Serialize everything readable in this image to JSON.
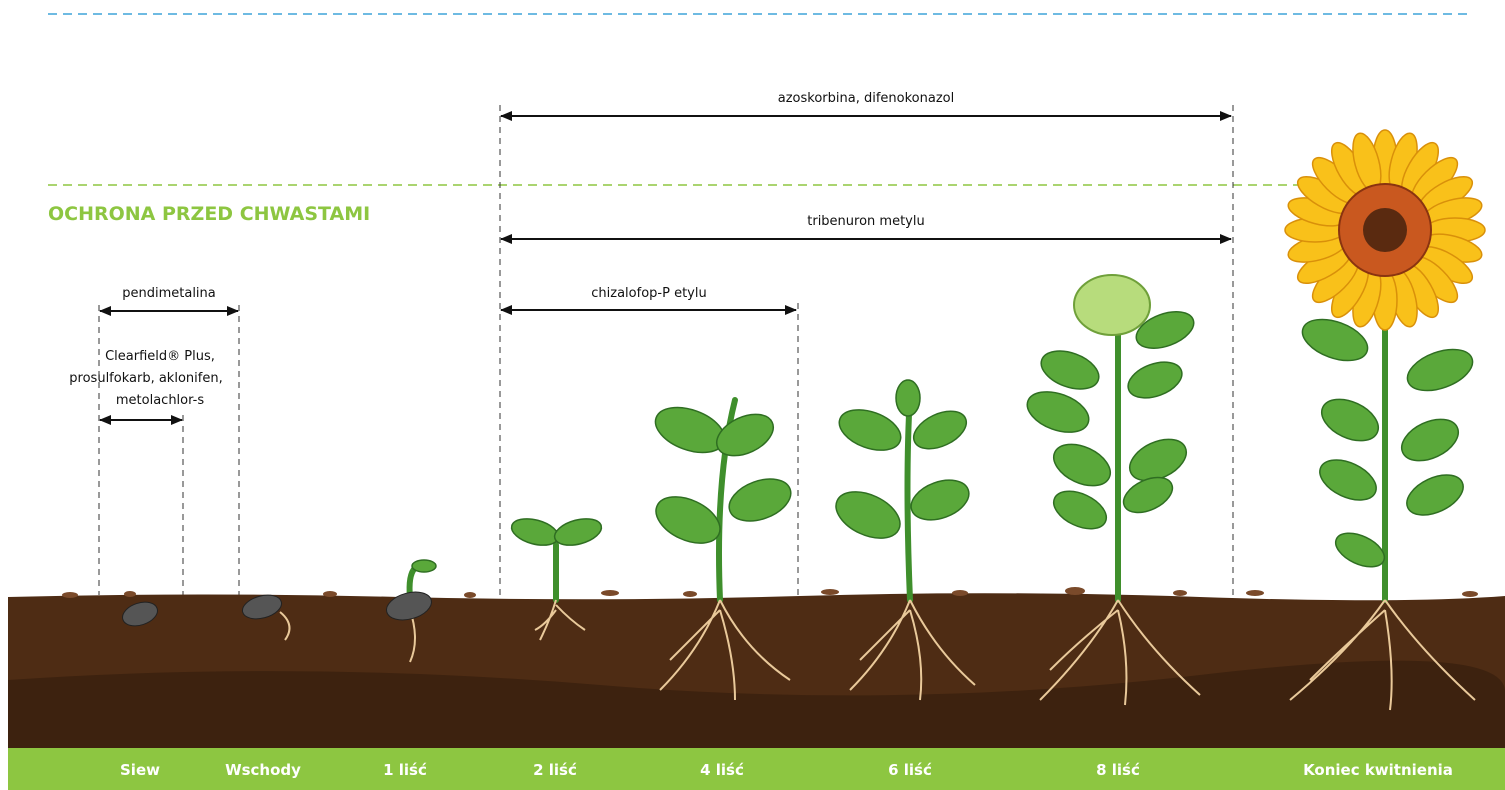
{
  "section_title": "OCHRONA PRZED CHWASTAMI",
  "ranges": [
    {
      "label": "azoskorbina, difenokonazol"
    },
    {
      "label": "tribenuron metylu"
    },
    {
      "label": "chizalofop-P etylu"
    },
    {
      "label": "pendimetalina"
    },
    {
      "lines": [
        "Clearfield® Plus,",
        "prosulfokarb, aklonifen,",
        "metolachlor-s"
      ]
    }
  ],
  "stages": [
    "Siew",
    "Wschody",
    "1 liść",
    "2 liść",
    "4 liść",
    "6 liść",
    "8 liść",
    "Koniec kwitnienia"
  ]
}
